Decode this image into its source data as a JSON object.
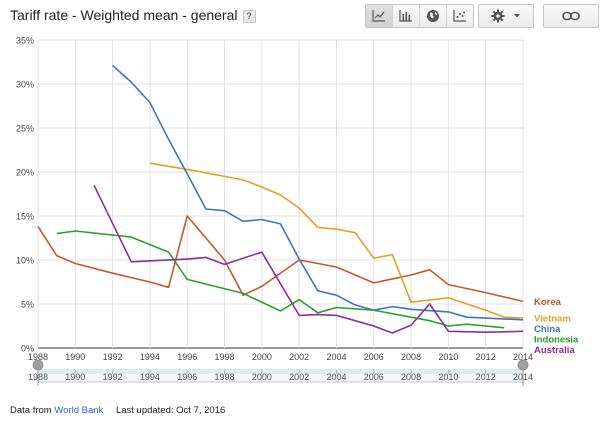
{
  "header": {
    "title": "Tariff rate - Weighted mean - general",
    "help_label": "?"
  },
  "toolbar": {
    "chart_views": [
      {
        "icon": "line-chart-icon"
      },
      {
        "icon": "bar-chart-icon"
      },
      {
        "icon": "globe-map-icon"
      },
      {
        "icon": "scatter-chart-icon"
      }
    ],
    "settings_icon": "gear-icon",
    "dropdown_icon": "caret-down-icon",
    "link_icon": "link-icon"
  },
  "footer": {
    "data_from_label": "Data from",
    "source": "World Bank",
    "updated_label": "Last updated: Oct 7, 2016"
  },
  "timeline": {
    "ticks": [
      "1988",
      "1990",
      "1992",
      "1994",
      "1996",
      "1998",
      "2000",
      "2002",
      "2004",
      "2006",
      "2008",
      "2010",
      "2012",
      "2014"
    ],
    "range": [
      1988,
      2014
    ]
  },
  "chart_data": {
    "type": "line",
    "title": "Tariff rate - Weighted mean - general",
    "xlabel": "",
    "ylabel": "",
    "xlim": [
      1988,
      2014
    ],
    "ylim": [
      0,
      35
    ],
    "x_ticks": [
      "1988",
      "1990",
      "1992",
      "1994",
      "1996",
      "1998",
      "2000",
      "2002",
      "2004",
      "2006",
      "2008",
      "2010",
      "2012",
      "2014"
    ],
    "y_ticks": [
      "0%",
      "5%",
      "10%",
      "15%",
      "20%",
      "25%",
      "30%",
      "35%"
    ],
    "grid": true,
    "legend": "right end labels",
    "series": [
      {
        "name": "Korea",
        "color": "#c9572b",
        "points": [
          [
            1988,
            13.8
          ],
          [
            1989,
            10.5
          ],
          [
            1990,
            9.6
          ],
          [
            1992,
            8.5
          ],
          [
            1994,
            7.5
          ],
          [
            1995,
            6.9
          ],
          [
            1996,
            15.0
          ],
          [
            1997,
            12.5
          ],
          [
            1998,
            10.0
          ],
          [
            1999,
            6.0
          ],
          [
            2000,
            7.0
          ],
          [
            2002,
            10.0
          ],
          [
            2004,
            9.2
          ],
          [
            2006,
            7.4
          ],
          [
            2008,
            8.3
          ],
          [
            2009,
            8.9
          ],
          [
            2010,
            7.2
          ],
          [
            2012,
            6.3
          ],
          [
            2014,
            5.3
          ]
        ]
      },
      {
        "name": "Vietnam",
        "color": "#e8a020",
        "points": [
          [
            1994,
            21.0
          ],
          [
            1996,
            20.3
          ],
          [
            1998,
            19.5
          ],
          [
            1999,
            19.1
          ],
          [
            2000,
            18.3
          ],
          [
            2001,
            17.4
          ],
          [
            2002,
            15.9
          ],
          [
            2003,
            13.7
          ],
          [
            2004,
            13.5
          ],
          [
            2005,
            13.1
          ],
          [
            2006,
            10.2
          ],
          [
            2007,
            10.6
          ],
          [
            2008,
            5.2
          ],
          [
            2010,
            5.7
          ],
          [
            2012,
            4.3
          ],
          [
            2013,
            3.5
          ],
          [
            2014,
            3.4
          ]
        ]
      },
      {
        "name": "China",
        "color": "#4472c4",
        "points": [
          [
            1992,
            32.1
          ],
          [
            1993,
            30.2
          ],
          [
            1994,
            27.9
          ],
          [
            1995,
            23.7
          ],
          [
            1996,
            19.8
          ],
          [
            1997,
            15.8
          ],
          [
            1998,
            15.6
          ],
          [
            1999,
            14.4
          ],
          [
            2000,
            14.6
          ],
          [
            2001,
            14.1
          ],
          [
            2002,
            10.1
          ],
          [
            2003,
            6.5
          ],
          [
            2004,
            6.0
          ],
          [
            2005,
            4.9
          ],
          [
            2006,
            4.3
          ],
          [
            2007,
            4.7
          ],
          [
            2008,
            4.4
          ],
          [
            2010,
            4.1
          ],
          [
            2011,
            3.5
          ],
          [
            2014,
            3.2
          ]
        ]
      },
      {
        "name": "Indonesia",
        "color": "#2e9e2e",
        "points": [
          [
            1989,
            13.0
          ],
          [
            1990,
            13.3
          ],
          [
            1993,
            12.6
          ],
          [
            1995,
            10.9
          ],
          [
            1996,
            7.8
          ],
          [
            1999,
            6.2
          ],
          [
            2001,
            4.2
          ],
          [
            2002,
            5.5
          ],
          [
            2003,
            4.0
          ],
          [
            2004,
            4.6
          ],
          [
            2006,
            4.3
          ],
          [
            2009,
            3.1
          ],
          [
            2010,
            2.5
          ],
          [
            2011,
            2.7
          ],
          [
            2012,
            2.5
          ],
          [
            2013,
            2.3
          ]
        ]
      },
      {
        "name": "Australia",
        "color": "#8e2d9c",
        "points": [
          [
            1991,
            18.5
          ],
          [
            1993,
            9.8
          ],
          [
            1996,
            10.1
          ],
          [
            1997,
            10.3
          ],
          [
            1998,
            9.5
          ],
          [
            2000,
            10.9
          ],
          [
            2001,
            7.3
          ],
          [
            2002,
            3.7
          ],
          [
            2003,
            3.8
          ],
          [
            2004,
            3.7
          ],
          [
            2005,
            3.1
          ],
          [
            2006,
            2.5
          ],
          [
            2007,
            1.7
          ],
          [
            2008,
            2.6
          ],
          [
            2009,
            5.0
          ],
          [
            2010,
            1.9
          ],
          [
            2012,
            1.8
          ],
          [
            2014,
            1.9
          ]
        ]
      }
    ]
  }
}
